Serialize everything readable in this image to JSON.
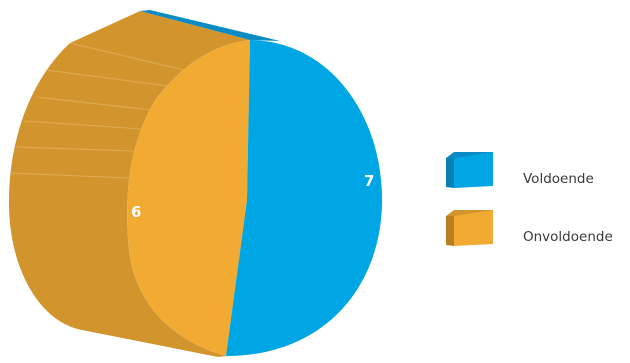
{
  "chart_data": {
    "type": "pie",
    "style": "3d-cylinder",
    "categories": [
      "Voldoende",
      "Onvoldoende"
    ],
    "values": [
      7,
      6
    ],
    "colors": {
      "Voldoende": {
        "top": "#00a5e3",
        "side": "#0b8ac3",
        "dark": "#0a7fb4"
      },
      "Onvoldoende": {
        "top": "#f2ab32",
        "side": "#d2952d",
        "dark": "#b87f22"
      }
    },
    "data_labels": [
      "7",
      "6"
    ],
    "legend": {
      "placement": "right",
      "items": [
        "Voldoende",
        "Onvoldoende"
      ]
    },
    "title": ""
  }
}
